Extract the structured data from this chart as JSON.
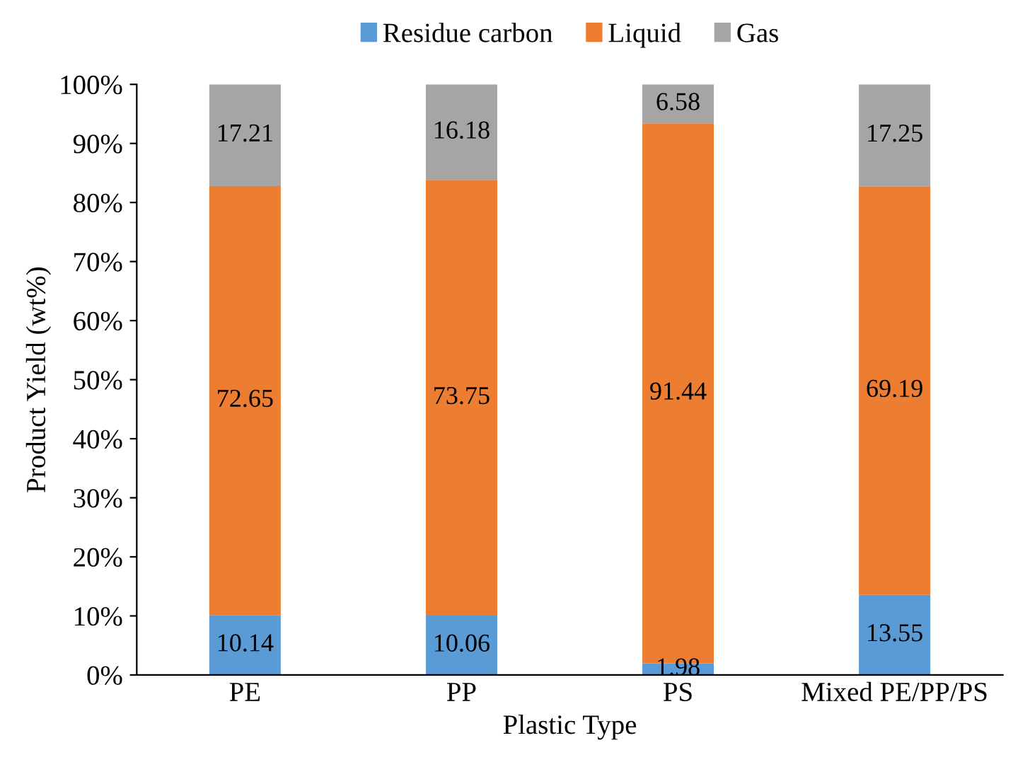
{
  "chart_data": {
    "type": "bar",
    "stacked": true,
    "xlabel": "Plastic Type",
    "ylabel": "Product Yield (wt%)",
    "categories": [
      "PE",
      "PP",
      "PS",
      "Mixed PE/PP/PS"
    ],
    "series": [
      {
        "name": "Residue carbon",
        "color": "#5b9bd5",
        "values": [
          10.14,
          10.06,
          1.98,
          13.55
        ]
      },
      {
        "name": "Liquid",
        "color": "#ed7d31",
        "values": [
          72.65,
          73.75,
          91.44,
          69.19
        ]
      },
      {
        "name": "Gas",
        "color": "#a5a5a5",
        "values": [
          17.21,
          16.18,
          6.58,
          17.25
        ]
      }
    ],
    "ylim": [
      0,
      100
    ],
    "yticks": [
      {
        "value": 0,
        "label": "0%"
      },
      {
        "value": 10,
        "label": "10%"
      },
      {
        "value": 20,
        "label": "20%"
      },
      {
        "value": 30,
        "label": "30%"
      },
      {
        "value": 40,
        "label": "40%"
      },
      {
        "value": 50,
        "label": "50%"
      },
      {
        "value": 60,
        "label": "60%"
      },
      {
        "value": 70,
        "label": "70%"
      },
      {
        "value": 80,
        "label": "80%"
      },
      {
        "value": 90,
        "label": "90%"
      },
      {
        "value": 100,
        "label": "100%"
      }
    ],
    "data_labels": true,
    "legend": "top",
    "grid": false
  }
}
